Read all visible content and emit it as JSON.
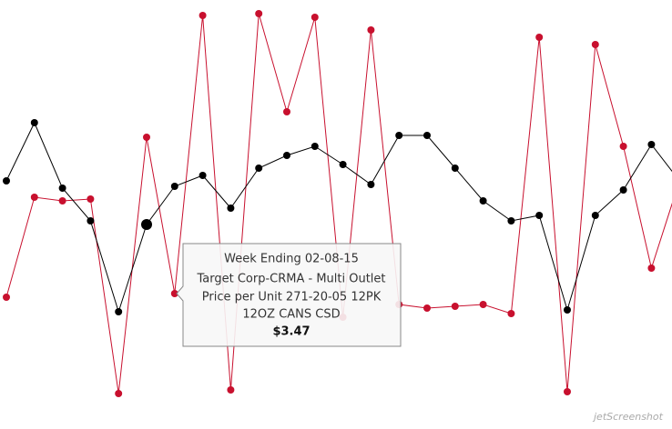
{
  "chart_data": {
    "type": "line",
    "ylim": [
      2.345,
      4.705
    ],
    "series": [
      {
        "name": null,
        "color": "#000000",
        "values": [
          3.71,
          4.03,
          3.67,
          3.49,
          2.99,
          3.47,
          3.68,
          3.74,
          3.56,
          3.78,
          3.85,
          3.9,
          3.8,
          3.69,
          3.96,
          3.96,
          3.78,
          3.6,
          3.49,
          3.52,
          3.0,
          3.52,
          3.66,
          3.91,
          3.71
        ],
        "value_labels": [
          null,
          null,
          null,
          null,
          null,
          "$3.47",
          null,
          null,
          null,
          null,
          null,
          null,
          null,
          null,
          null,
          null,
          null,
          null,
          null,
          null,
          null,
          null,
          null,
          null,
          null
        ]
      },
      {
        "name": null,
        "color": "#c8102e",
        "values": [
          3.07,
          3.62,
          3.6,
          3.61,
          2.54,
          3.95,
          3.09,
          4.62,
          2.56,
          4.63,
          4.09,
          4.61,
          2.96,
          4.54,
          3.03,
          3.01,
          3.02,
          3.03,
          2.98,
          4.5,
          2.55,
          4.46,
          3.9,
          3.23,
          3.71
        ]
      }
    ],
    "tooltip": {
      "title": "Week Ending 02-08-15",
      "lines": [
        "Target Corp-CRMA - Multi Outlet",
        "Price per Unit 271-20-05 12PK",
        "12OZ CANS CSD"
      ]
    },
    "watermark": "jetScreenshot"
  }
}
